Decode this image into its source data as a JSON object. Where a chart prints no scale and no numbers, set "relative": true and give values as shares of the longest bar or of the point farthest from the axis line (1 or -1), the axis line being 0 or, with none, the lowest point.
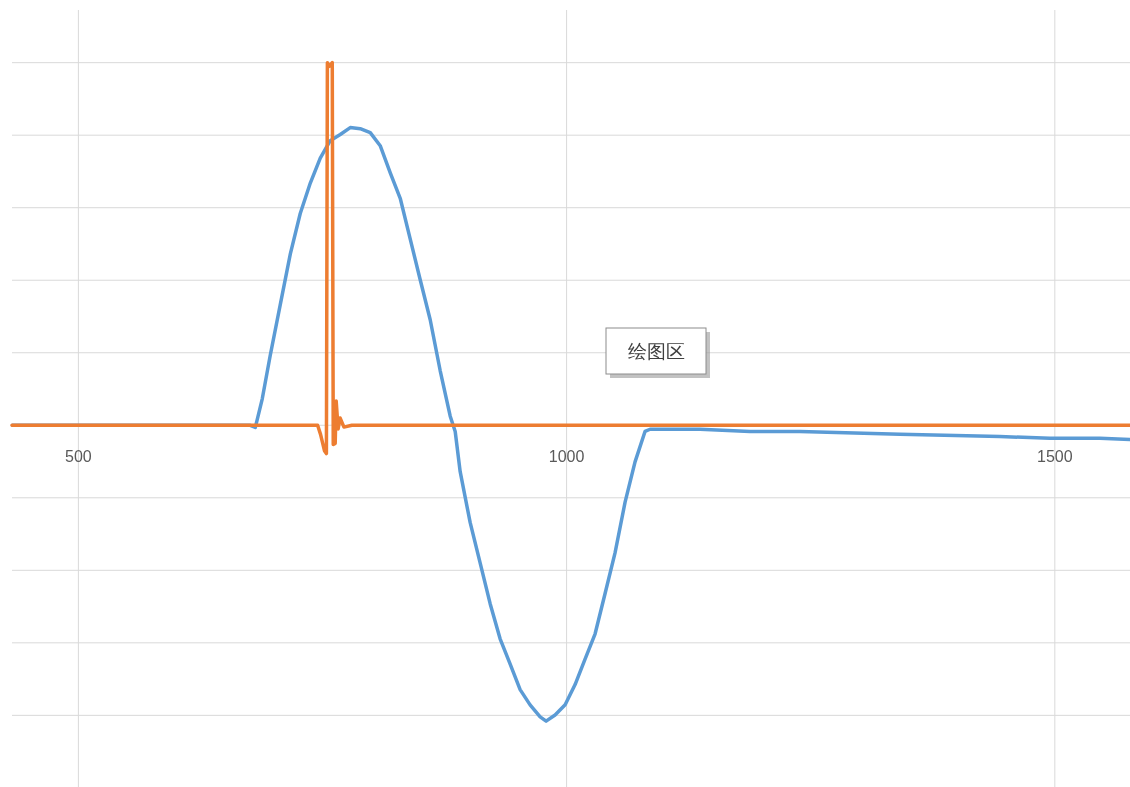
{
  "chart_data": {
    "type": "line",
    "relative": true,
    "xlim": [
      432,
      1577
    ],
    "xticks": [
      500,
      1000,
      1500
    ],
    "grid": true,
    "line_style": "solid",
    "annotations": [
      "绘图区"
    ],
    "series": [
      {
        "color": "#5b9bd5",
        "x": [
          432.4,
          676,
          681.2,
          688.3,
          696.5,
          706.7,
          717,
          727.2,
          737.5,
          747.7,
          757.9,
          768.2,
          778.4,
          788.6,
          798.9,
          809.1,
          819.4,
          829.6,
          839.8,
          850,
          860.3,
          870.5,
          880.8,
          885.9,
          891,
          901.2,
          911.5,
          921.7,
          931.9,
          942.2,
          952.4,
          962.6,
          972.9,
          979,
          988.2,
          998.5,
          1008.7,
          1018.9,
          1029.2,
          1039.4,
          1049.6,
          1059.9,
          1070.1,
          1080.3,
          1085.5,
          1136.6,
          1187.8,
          1239,
          1341.4,
          1443.7,
          1494.9,
          1546.1,
          1576.8
        ],
        "values": [
          0,
          0,
          -0.006,
          0.073,
          0.193,
          0.332,
          0.472,
          0.584,
          0.668,
          0.737,
          0.785,
          0.802,
          0.821,
          0.818,
          0.807,
          0.771,
          0.696,
          0.626,
          0.514,
          0.402,
          0.291,
          0.151,
          0.025,
          -0.017,
          -0.128,
          -0.268,
          -0.38,
          -0.492,
          -0.589,
          -0.659,
          -0.729,
          -0.771,
          -0.804,
          -0.816,
          -0.799,
          -0.771,
          -0.715,
          -0.645,
          -0.575,
          -0.464,
          -0.352,
          -0.212,
          -0.101,
          -0.017,
          -0.011,
          -0.011,
          -0.017,
          -0.017,
          -0.025,
          -0.031,
          -0.036,
          -0.036,
          -0.039
        ]
      },
      {
        "color": "#ed7d31",
        "x": [
          432,
          745,
          748,
          752,
          754,
          755,
          757,
          760,
          761,
          763,
          764,
          766,
          768,
          772,
          780,
          1577
        ],
        "values": [
          0,
          0,
          -0.025,
          -0.07,
          -0.078,
          1.0,
          0.99,
          1.0,
          -0.053,
          -0.05,
          0.067,
          -0.01,
          0.02,
          -0.005,
          0,
          0
        ]
      }
    ]
  }
}
